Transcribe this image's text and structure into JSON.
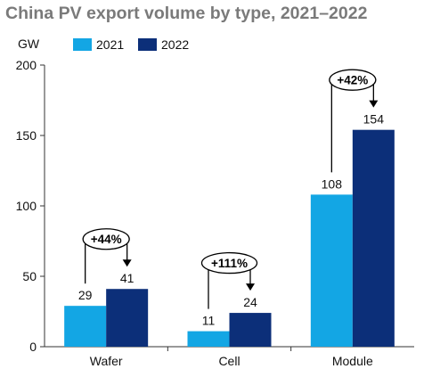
{
  "chart_data": {
    "type": "bar",
    "title": "China PV export volume by type, 2021–2022",
    "ylabel": "GW",
    "ylim": [
      0,
      200
    ],
    "yticks": [
      0,
      50,
      100,
      150,
      200
    ],
    "grid": false,
    "legend_position": "top",
    "categories": [
      "Wafer",
      "Cell",
      "Module"
    ],
    "series": [
      {
        "name": "2021",
        "values": [
          29,
          11,
          108
        ],
        "color": "#13a6e4"
      },
      {
        "name": "2022",
        "values": [
          41,
          24,
          154
        ],
        "color": "#0c2f79"
      }
    ],
    "annotations": [
      {
        "category": "Wafer",
        "text": "+44%"
      },
      {
        "category": "Cell",
        "text": "+111%"
      },
      {
        "category": "Module",
        "text": "+42%"
      }
    ]
  }
}
